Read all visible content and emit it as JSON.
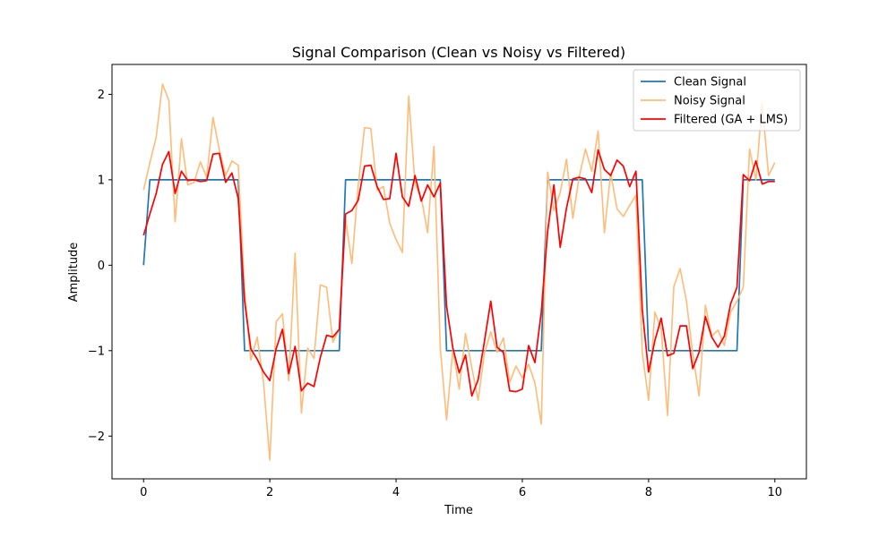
{
  "chart_data": {
    "type": "line",
    "title": "Signal Comparison (Clean vs Noisy vs Filtered)",
    "xlabel": "Time",
    "ylabel": "Amplitude",
    "xlim": [
      -0.5,
      10.5
    ],
    "ylim": [
      -2.5,
      2.35
    ],
    "xticks": [
      0,
      2,
      4,
      6,
      8,
      10
    ],
    "yticks": [
      -2,
      -1,
      0,
      1,
      2
    ],
    "xtick_labels": [
      "0",
      "2",
      "4",
      "6",
      "8",
      "10"
    ],
    "ytick_labels": [
      "−2",
      "−1",
      "0",
      "1",
      "2"
    ],
    "grid": false,
    "legend_position": "top-right",
    "series": [
      {
        "name": "Clean Signal",
        "color": "#1f77b4",
        "x": [
          0,
          0.1,
          1.5,
          1.6,
          3.1,
          3.2,
          4.7,
          4.8,
          6.3,
          6.4,
          7.9,
          8.0,
          9.4,
          9.5,
          10.0
        ],
        "y": [
          0,
          1,
          1,
          -1,
          -1,
          1,
          1,
          -1,
          -1,
          1,
          1,
          -1,
          -1,
          1,
          1
        ]
      },
      {
        "name": "Noisy Signal",
        "color": "#ffbb78",
        "x": [
          0,
          0.1,
          0.2,
          0.3,
          0.4,
          0.5,
          0.6,
          0.7,
          0.8,
          0.9,
          1.0,
          1.1,
          1.2,
          1.3,
          1.4,
          1.5,
          1.6,
          1.7,
          1.8,
          1.9,
          2.0,
          2.1,
          2.2,
          2.3,
          2.4,
          2.5,
          2.6,
          2.7,
          2.8,
          2.9,
          3.0,
          3.1,
          3.2,
          3.3,
          3.4,
          3.5,
          3.6,
          3.7,
          3.8,
          3.9,
          4.0,
          4.1,
          4.2,
          4.3,
          4.4,
          4.5,
          4.6,
          4.7,
          4.8,
          4.9,
          5.0,
          5.1,
          5.2,
          5.3,
          5.4,
          5.5,
          5.6,
          5.7,
          5.8,
          5.9,
          6.0,
          6.1,
          6.2,
          6.3,
          6.4,
          6.5,
          6.6,
          6.7,
          6.8,
          6.9,
          7.0,
          7.1,
          7.2,
          7.3,
          7.4,
          7.5,
          7.6,
          7.7,
          7.8,
          7.9,
          8.0,
          8.1,
          8.2,
          8.3,
          8.4,
          8.5,
          8.6,
          8.7,
          8.8,
          8.9,
          9.0,
          9.1,
          9.2,
          9.3,
          9.4,
          9.5,
          9.6,
          9.7,
          9.8,
          9.9,
          10.0
        ],
        "y": [
          0.88,
          1.2,
          1.5,
          2.12,
          1.93,
          0.51,
          1.48,
          0.94,
          0.97,
          1.21,
          1.03,
          1.73,
          1.35,
          1.05,
          1.22,
          1.17,
          -0.3,
          -1.11,
          -0.84,
          -1.37,
          -2.28,
          -0.66,
          -0.57,
          -1.35,
          0.14,
          -1.73,
          -0.97,
          -1.09,
          -0.23,
          -0.26,
          -0.9,
          -0.75,
          0.54,
          0.02,
          0.93,
          1.61,
          1.6,
          0.88,
          0.92,
          0.49,
          0.3,
          0.15,
          1.98,
          0.95,
          0.79,
          0.38,
          1.39,
          -0.97,
          -1.81,
          -0.98,
          -1.45,
          -0.8,
          -1.2,
          -1.58,
          -1.03,
          -0.78,
          -1.02,
          -0.85,
          -1.37,
          -1.18,
          -1.32,
          -1.16,
          -1.38,
          -1.86,
          1.09,
          0.64,
          0.85,
          1.24,
          0.55,
          1.03,
          1.36,
          1.1,
          1.57,
          0.38,
          1.08,
          0.66,
          0.57,
          0.7,
          0.82,
          -1.02,
          -1.58,
          -0.55,
          -0.75,
          -1.76,
          -0.25,
          -0.04,
          -0.42,
          -1.04,
          -1.53,
          -0.47,
          -0.83,
          -0.76,
          -0.94,
          -0.55,
          -0.42,
          -0.26,
          1.36,
          1.0,
          1.9,
          1.05,
          1.2
        ]
      },
      {
        "name": "Filtered (GA + LMS)",
        "color": "#ff0000",
        "x": [
          0,
          0.1,
          0.2,
          0.3,
          0.4,
          0.5,
          0.6,
          0.7,
          0.8,
          0.9,
          1.0,
          1.1,
          1.2,
          1.3,
          1.4,
          1.5,
          1.6,
          1.7,
          1.8,
          1.9,
          2.0,
          2.1,
          2.2,
          2.3,
          2.4,
          2.5,
          2.6,
          2.7,
          2.8,
          2.9,
          3.0,
          3.1,
          3.2,
          3.3,
          3.4,
          3.5,
          3.6,
          3.7,
          3.8,
          3.9,
          4.0,
          4.1,
          4.2,
          4.3,
          4.4,
          4.5,
          4.6,
          4.7,
          4.8,
          4.9,
          5.0,
          5.1,
          5.2,
          5.3,
          5.4,
          5.5,
          5.6,
          5.7,
          5.8,
          5.9,
          6.0,
          6.1,
          6.2,
          6.3,
          6.4,
          6.5,
          6.6,
          6.7,
          6.8,
          6.9,
          7.0,
          7.1,
          7.2,
          7.3,
          7.4,
          7.5,
          7.6,
          7.7,
          7.8,
          7.9,
          8.0,
          8.1,
          8.2,
          8.3,
          8.4,
          8.5,
          8.6,
          8.7,
          8.8,
          8.9,
          9.0,
          9.1,
          9.2,
          9.3,
          9.4,
          9.5,
          9.6,
          9.7,
          9.8,
          9.9,
          10.0
        ],
        "y": [
          0.35,
          0.6,
          0.84,
          1.18,
          1.33,
          0.84,
          1.1,
          0.99,
          1.0,
          0.98,
          0.99,
          1.3,
          1.31,
          0.97,
          1.08,
          0.78,
          -0.42,
          -0.98,
          -1.1,
          -1.25,
          -1.35,
          -0.98,
          -0.75,
          -1.27,
          -0.95,
          -1.47,
          -1.38,
          -1.42,
          -1.08,
          -0.82,
          -0.84,
          -0.75,
          0.6,
          0.64,
          0.76,
          1.16,
          1.17,
          0.92,
          0.77,
          0.78,
          1.31,
          0.8,
          0.69,
          1.05,
          0.75,
          0.94,
          0.8,
          0.96,
          -0.48,
          -0.97,
          -1.26,
          -1.05,
          -1.53,
          -1.34,
          -0.89,
          -0.42,
          -0.96,
          -1.02,
          -1.47,
          -1.48,
          -1.45,
          -0.94,
          -1.14,
          -0.55,
          0.39,
          0.94,
          0.21,
          0.67,
          1.01,
          1.03,
          1.01,
          0.85,
          1.35,
          1.12,
          1.05,
          1.23,
          1.16,
          0.92,
          1.1,
          -0.52,
          -1.25,
          -0.88,
          -0.62,
          -1.06,
          -1.03,
          -0.71,
          -0.71,
          -1.21,
          -1.02,
          -0.6,
          -0.84,
          -0.96,
          -0.83,
          -0.45,
          -0.26,
          1.06,
          0.99,
          1.22,
          0.95,
          0.98,
          0.98
        ]
      }
    ]
  }
}
